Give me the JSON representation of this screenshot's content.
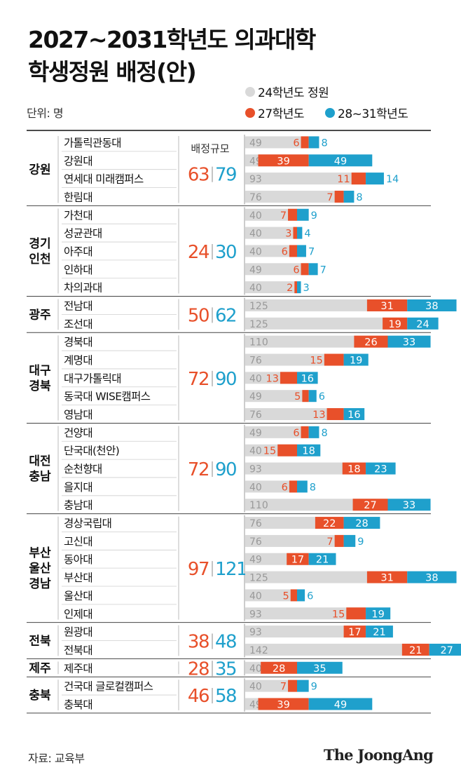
{
  "title_line1": "2027~2031학년도 의과대학",
  "title_line2": "학생정원 배정(안)",
  "unit": "단위: 명",
  "source": "자료: 교육부",
  "brand": "The JoongAng",
  "colors": {
    "base": "#d9d9d9",
    "y27": "#e8502a",
    "y28": "#1fa0cc",
    "text": "#111111",
    "muted": "#999999"
  },
  "chart_data": {
    "type": "bar",
    "legend": [
      {
        "name": "24학년도 정원",
        "color": "#d9d9d9"
      },
      {
        "name": "27학년도",
        "color": "#e8502a"
      },
      {
        "name": "28~31학년도",
        "color": "#1fa0cc"
      }
    ],
    "scale_label": "배정규모",
    "regions": [
      {
        "name": "강원",
        "total27": 63,
        "total28": 79,
        "schools": [
          {
            "name": "가톨릭관동대",
            "base": 49,
            "y27": 6,
            "y28": 8
          },
          {
            "name": "강원대",
            "base": 49,
            "y27": 39,
            "y28": 49
          },
          {
            "name": "연세대 미래캠퍼스",
            "base": 93,
            "y27": 11,
            "y28": 14
          },
          {
            "name": "한림대",
            "base": 76,
            "y27": 7,
            "y28": 8
          }
        ]
      },
      {
        "name": "경기\n인천",
        "total27": 24,
        "total28": 30,
        "schools": [
          {
            "name": "가천대",
            "base": 40,
            "y27": 7,
            "y28": 9
          },
          {
            "name": "성균관대",
            "base": 40,
            "y27": 3,
            "y28": 4
          },
          {
            "name": "아주대",
            "base": 40,
            "y27": 6,
            "y28": 7
          },
          {
            "name": "인하대",
            "base": 49,
            "y27": 6,
            "y28": 7
          },
          {
            "name": "차의과대",
            "base": 40,
            "y27": 2,
            "y28": 3
          }
        ]
      },
      {
        "name": "광주",
        "total27": 50,
        "total28": 62,
        "schools": [
          {
            "name": "전남대",
            "base": 125,
            "y27": 31,
            "y28": 38
          },
          {
            "name": "조선대",
            "base": 125,
            "y27": 19,
            "y28": 24
          }
        ]
      },
      {
        "name": "대구\n경북",
        "total27": 72,
        "total28": 90,
        "schools": [
          {
            "name": "경북대",
            "base": 110,
            "y27": 26,
            "y28": 33
          },
          {
            "name": "계명대",
            "base": 76,
            "y27": 15,
            "y28": 19
          },
          {
            "name": "대구가톨릭대",
            "base": 40,
            "y27": 13,
            "y28": 16
          },
          {
            "name": "동국대 WISE캠퍼스",
            "base": 49,
            "y27": 5,
            "y28": 6
          },
          {
            "name": "영남대",
            "base": 76,
            "y27": 13,
            "y28": 16
          }
        ]
      },
      {
        "name": "대전\n충남",
        "total27": 72,
        "total28": 90,
        "schools": [
          {
            "name": "건양대",
            "base": 49,
            "y27": 6,
            "y28": 8
          },
          {
            "name": "단국대(천안)",
            "base": 40,
            "y27": 15,
            "y28": 18
          },
          {
            "name": "순천향대",
            "base": 93,
            "y27": 18,
            "y28": 23
          },
          {
            "name": "을지대",
            "base": 40,
            "y27": 6,
            "y28": 8
          },
          {
            "name": "충남대",
            "base": 110,
            "y27": 27,
            "y28": 33
          }
        ]
      },
      {
        "name": "부산\n울산\n경남",
        "total27": 97,
        "total28": 121,
        "schools": [
          {
            "name": "경상국립대",
            "base": 76,
            "y27": 22,
            "y28": 28
          },
          {
            "name": "고신대",
            "base": 76,
            "y27": 7,
            "y28": 9
          },
          {
            "name": "동아대",
            "base": 49,
            "y27": 17,
            "y28": 21
          },
          {
            "name": "부산대",
            "base": 125,
            "y27": 31,
            "y28": 38
          },
          {
            "name": "울산대",
            "base": 40,
            "y27": 5,
            "y28": 6
          },
          {
            "name": "인제대",
            "base": 93,
            "y27": 15,
            "y28": 19
          }
        ]
      },
      {
        "name": "전북",
        "total27": 38,
        "total28": 48,
        "schools": [
          {
            "name": "원광대",
            "base": 93,
            "y27": 17,
            "y28": 21
          },
          {
            "name": "전북대",
            "base": 142,
            "y27": 21,
            "y28": 27
          }
        ]
      },
      {
        "name": "제주",
        "total27": 28,
        "total28": 35,
        "schools": [
          {
            "name": "제주대",
            "base": 40,
            "y27": 28,
            "y28": 35
          }
        ]
      },
      {
        "name": "충북",
        "total27": 46,
        "total28": 58,
        "schools": [
          {
            "name": "건국대 글로컬캠퍼스",
            "base": 40,
            "y27": 7,
            "y28": 9
          },
          {
            "name": "충북대",
            "base": 49,
            "y27": 39,
            "y28": 49
          }
        ]
      }
    ]
  }
}
